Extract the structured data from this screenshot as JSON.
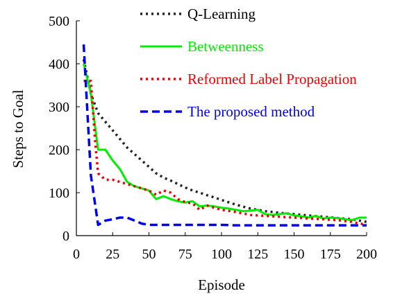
{
  "chart_data": {
    "type": "line",
    "xlabel": "Episode",
    "ylabel": "Steps to Goal",
    "xlim": [
      0,
      200
    ],
    "ylim": [
      0,
      500
    ],
    "xticks": [
      0,
      25,
      50,
      75,
      100,
      125,
      150,
      175,
      200
    ],
    "yticks": [
      0,
      100,
      200,
      300,
      400,
      500
    ],
    "grid": false,
    "legend_position": "top-right, inside",
    "series": [
      {
        "name": "Q-Learning",
        "color": "#222222",
        "style": "dotted",
        "x": [
          5,
          10,
          15,
          20,
          25,
          30,
          35,
          40,
          45,
          50,
          55,
          60,
          65,
          70,
          75,
          80,
          85,
          90,
          95,
          100,
          110,
          120,
          130,
          140,
          150,
          160,
          170,
          180,
          190,
          200
        ],
        "y": [
          410,
          330,
          285,
          265,
          245,
          225,
          205,
          190,
          175,
          160,
          145,
          135,
          128,
          120,
          112,
          105,
          100,
          94,
          89,
          83,
          72,
          63,
          57,
          53,
          50,
          47,
          44,
          41,
          38,
          32
        ]
      },
      {
        "name": "Betweenness",
        "color": "#00ee00",
        "style": "solid",
        "x": [
          5,
          10,
          15,
          20,
          25,
          30,
          35,
          40,
          45,
          50,
          55,
          60,
          65,
          70,
          75,
          80,
          85,
          90,
          95,
          100,
          105,
          110,
          115,
          120,
          125,
          130,
          135,
          140,
          145,
          150,
          155,
          160,
          165,
          170,
          175,
          180,
          185,
          190,
          195,
          200
        ],
        "y": [
          400,
          330,
          200,
          200,
          175,
          155,
          125,
          115,
          110,
          105,
          85,
          92,
          85,
          80,
          77,
          80,
          68,
          70,
          68,
          65,
          63,
          60,
          57,
          58,
          60,
          50,
          48,
          50,
          52,
          47,
          45,
          42,
          46,
          40,
          42,
          41,
          38,
          36,
          42,
          42
        ]
      },
      {
        "name": "Reformed Label Propagation",
        "color": "#ee0000",
        "style": "dotted",
        "x": [
          5,
          10,
          13,
          15,
          20,
          25,
          30,
          35,
          40,
          45,
          50,
          55,
          60,
          65,
          70,
          75,
          80,
          85,
          90,
          95,
          100,
          110,
          120,
          130,
          140,
          150,
          160,
          170,
          180,
          190,
          200
        ],
        "y": [
          360,
          360,
          215,
          145,
          130,
          130,
          125,
          120,
          115,
          110,
          105,
          95,
          105,
          100,
          85,
          78,
          75,
          60,
          70,
          65,
          60,
          55,
          48,
          46,
          44,
          42,
          40,
          38,
          36,
          32,
          25
        ]
      },
      {
        "name": "The proposed method",
        "color": "#0000ee",
        "style": "dashed",
        "x": [
          5,
          10,
          15,
          20,
          25,
          30,
          35,
          40,
          45,
          50,
          60,
          70,
          80,
          90,
          100,
          110,
          120,
          140,
          160,
          180,
          190,
          200
        ],
        "y": [
          445,
          140,
          25,
          35,
          38,
          42,
          42,
          35,
          28,
          25,
          25,
          25,
          25,
          25,
          25,
          24,
          24,
          24,
          24,
          24,
          24,
          24
        ]
      }
    ]
  }
}
